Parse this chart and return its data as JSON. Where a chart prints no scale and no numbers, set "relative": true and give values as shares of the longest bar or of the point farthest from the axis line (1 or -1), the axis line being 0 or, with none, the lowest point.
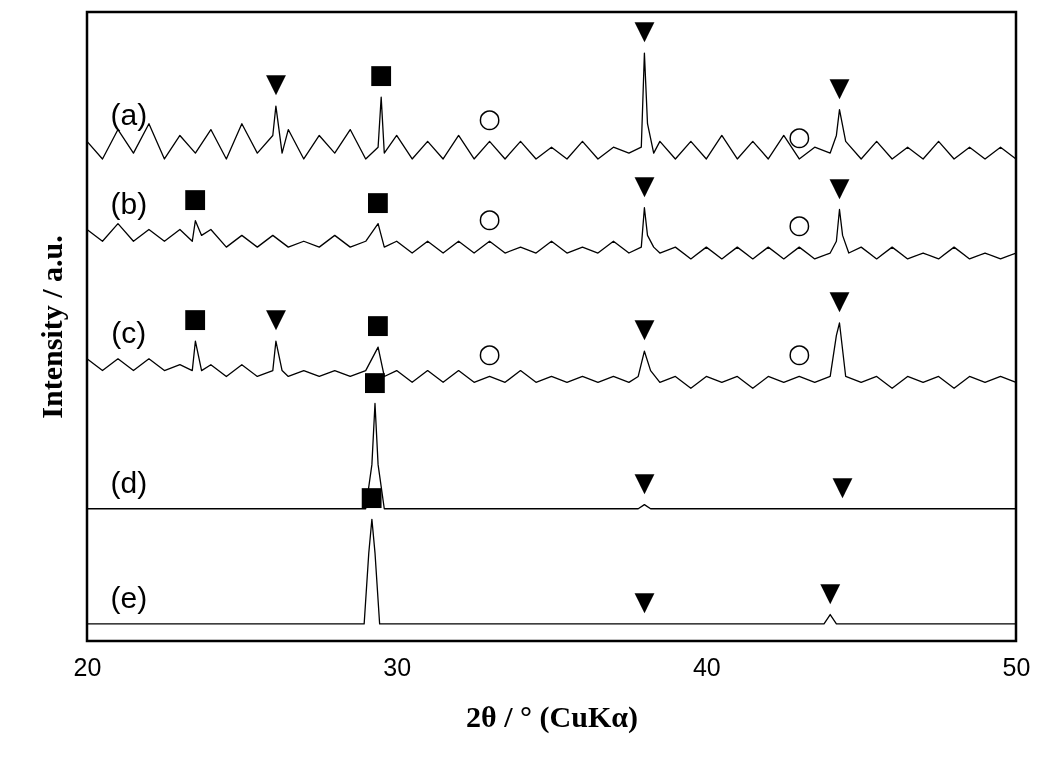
{
  "chart_data": {
    "type": "line",
    "relative": true,
    "xlabel": "2θ / °  (CuKα)",
    "ylabel": "Intensity / a.u.",
    "xlim": [
      20,
      50
    ],
    "xticks": [
      20,
      30,
      40,
      50
    ],
    "marker": "none",
    "series": [
      {
        "name": "(a)",
        "color": "#000000",
        "x": [
          20,
          20.5,
          21,
          21.5,
          22,
          22.5,
          23,
          23.5,
          24,
          24.5,
          25,
          25.5,
          26,
          26.1,
          26.3,
          26.5,
          27,
          27.5,
          28,
          28.5,
          29,
          29.4,
          29.5,
          29.6,
          30,
          30.5,
          31,
          31.5,
          32,
          32.5,
          33,
          33.5,
          34,
          34.5,
          35,
          35.5,
          36,
          36.5,
          37,
          37.5,
          37.9,
          38,
          38.1,
          38.3,
          38.5,
          39,
          39.5,
          40,
          40.5,
          41,
          41.5,
          42,
          42.5,
          43,
          43.5,
          44,
          44.2,
          44.3,
          44.5,
          45,
          45.5,
          46,
          46.5,
          47,
          47.5,
          48,
          48.5,
          49,
          49.5,
          50
        ],
        "values": [
          0.85,
          0.82,
          0.87,
          0.83,
          0.88,
          0.82,
          0.86,
          0.83,
          0.87,
          0.82,
          0.88,
          0.83,
          0.86,
          0.91,
          0.83,
          0.87,
          0.82,
          0.86,
          0.83,
          0.87,
          0.82,
          0.84,
          0.925,
          0.83,
          0.86,
          0.82,
          0.85,
          0.82,
          0.86,
          0.82,
          0.85,
          0.82,
          0.85,
          0.82,
          0.84,
          0.82,
          0.85,
          0.82,
          0.84,
          0.83,
          0.84,
          1.0,
          0.88,
          0.83,
          0.85,
          0.82,
          0.85,
          0.82,
          0.86,
          0.82,
          0.85,
          0.82,
          0.86,
          0.82,
          0.84,
          0.83,
          0.86,
          0.904,
          0.85,
          0.82,
          0.85,
          0.82,
          0.84,
          0.82,
          0.85,
          0.82,
          0.84,
          0.82,
          0.84,
          0.82
        ]
      },
      {
        "name": "(b)",
        "color": "#000000",
        "x": [
          20,
          20.5,
          21,
          21.5,
          22,
          22.5,
          23,
          23.4,
          23.5,
          23.7,
          24,
          24.5,
          25,
          25.5,
          26,
          26.5,
          27,
          27.5,
          28,
          28.5,
          29,
          29.4,
          29.6,
          30,
          30.5,
          31,
          31.5,
          32,
          32.5,
          33,
          33.5,
          34,
          34.5,
          35,
          35.5,
          36,
          36.5,
          37,
          37.5,
          37.9,
          38,
          38.1,
          38.3,
          38.5,
          39,
          39.5,
          40,
          40.5,
          41,
          41.5,
          42,
          42.5,
          43,
          43.5,
          44,
          44.2,
          44.3,
          44.4,
          44.6,
          45,
          45.5,
          46,
          46.5,
          47,
          47.5,
          48,
          48.5,
          49,
          49.5,
          50
        ],
        "values": [
          0.7,
          0.68,
          0.71,
          0.68,
          0.7,
          0.68,
          0.7,
          0.68,
          0.715,
          0.69,
          0.7,
          0.67,
          0.69,
          0.67,
          0.69,
          0.67,
          0.68,
          0.67,
          0.69,
          0.67,
          0.68,
          0.71,
          0.67,
          0.68,
          0.66,
          0.68,
          0.66,
          0.68,
          0.66,
          0.68,
          0.66,
          0.67,
          0.66,
          0.68,
          0.66,
          0.67,
          0.66,
          0.68,
          0.66,
          0.67,
          0.737,
          0.69,
          0.67,
          0.66,
          0.67,
          0.65,
          0.67,
          0.65,
          0.67,
          0.65,
          0.67,
          0.65,
          0.67,
          0.65,
          0.66,
          0.68,
          0.734,
          0.69,
          0.66,
          0.67,
          0.65,
          0.67,
          0.65,
          0.66,
          0.65,
          0.67,
          0.65,
          0.66,
          0.65,
          0.66
        ]
      },
      {
        "name": "(c)",
        "color": "#000000",
        "x": [
          20,
          20.5,
          21,
          21.5,
          22,
          22.5,
          23,
          23.4,
          23.5,
          23.7,
          24,
          24.5,
          25,
          25.5,
          26,
          26.1,
          26.3,
          26.5,
          27,
          27.5,
          28,
          28.5,
          29,
          29.4,
          29.6,
          30,
          30.5,
          31,
          31.5,
          32,
          32.5,
          33,
          33.5,
          34,
          34.5,
          35,
          35.5,
          36,
          36.5,
          37,
          37.5,
          37.8,
          38,
          38.2,
          38.5,
          39,
          39.5,
          40,
          40.5,
          41,
          41.5,
          42,
          42.5,
          43,
          43.5,
          44,
          44.2,
          44.3,
          44.5,
          45,
          45.5,
          46,
          46.5,
          47,
          47.5,
          48,
          48.5,
          49,
          49.5,
          50
        ],
        "values": [
          0.48,
          0.46,
          0.48,
          0.46,
          0.48,
          0.46,
          0.47,
          0.46,
          0.51,
          0.46,
          0.47,
          0.45,
          0.47,
          0.45,
          0.46,
          0.51,
          0.46,
          0.45,
          0.46,
          0.45,
          0.46,
          0.45,
          0.46,
          0.5,
          0.45,
          0.46,
          0.44,
          0.46,
          0.44,
          0.46,
          0.44,
          0.45,
          0.44,
          0.46,
          0.44,
          0.45,
          0.44,
          0.45,
          0.44,
          0.45,
          0.44,
          0.45,
          0.493,
          0.46,
          0.44,
          0.45,
          0.43,
          0.45,
          0.44,
          0.45,
          0.43,
          0.45,
          0.44,
          0.45,
          0.44,
          0.45,
          0.52,
          0.541,
          0.45,
          0.44,
          0.45,
          0.43,
          0.45,
          0.44,
          0.45,
          0.43,
          0.45,
          0.44,
          0.45,
          0.44
        ]
      },
      {
        "name": "(d)",
        "color": "#000000",
        "x": [
          20,
          29.0,
          29.2,
          29.3,
          29.4,
          29.6,
          37.8,
          38.0,
          38.2,
          44.4,
          50
        ],
        "values": [
          0.225,
          0.225,
          0.3,
          0.404,
          0.3,
          0.225,
          0.225,
          0.232,
          0.225,
          0.225,
          0.225
        ]
      },
      {
        "name": "(e)",
        "color": "#000000",
        "x": [
          20,
          28.95,
          29.1,
          29.2,
          29.3,
          29.45,
          38.0,
          43.8,
          44.0,
          44.2,
          50
        ],
        "values": [
          0.029,
          0.029,
          0.15,
          0.207,
          0.15,
          0.029,
          0.029,
          0.029,
          0.045,
          0.029,
          0.029
        ]
      }
    ],
    "annotations": [
      {
        "text": "▼",
        "x": 26.1,
        "y": 0.91
      },
      {
        "text": "■",
        "x": 29.5,
        "y": 0.925
      },
      {
        "text": "○",
        "x": 33,
        "y": 0.85
      },
      {
        "text": "▼",
        "x": 38,
        "y": 1.0
      },
      {
        "text": "○",
        "x": 43,
        "y": 0.82
      },
      {
        "text": "▼",
        "x": 44.3,
        "y": 0.904
      },
      {
        "text": "■",
        "x": 23.5,
        "y": 0.715
      },
      {
        "text": "■",
        "x": 29.4,
        "y": 0.71
      },
      {
        "text": "○",
        "x": 33,
        "y": 0.68
      },
      {
        "text": "▼",
        "x": 38,
        "y": 0.737
      },
      {
        "text": "○",
        "x": 43,
        "y": 0.67
      },
      {
        "text": "▼",
        "x": 44.3,
        "y": 0.734
      },
      {
        "text": "■",
        "x": 23.5,
        "y": 0.51
      },
      {
        "text": "▼",
        "x": 26.1,
        "y": 0.51
      },
      {
        "text": "■",
        "x": 29.4,
        "y": 0.5
      },
      {
        "text": "○",
        "x": 33,
        "y": 0.45
      },
      {
        "text": "▼",
        "x": 38,
        "y": 0.493
      },
      {
        "text": "○",
        "x": 43,
        "y": 0.45
      },
      {
        "text": "▼",
        "x": 44.3,
        "y": 0.541
      },
      {
        "text": "■",
        "x": 29.3,
        "y": 0.404
      },
      {
        "text": "▼",
        "x": 38,
        "y": 0.232
      },
      {
        "text": "▼",
        "x": 44.4,
        "y": 0.225
      },
      {
        "text": "■",
        "x": 29.2,
        "y": 0.207
      },
      {
        "text": "▼",
        "x": 38,
        "y": 0.029
      },
      {
        "text": "▼",
        "x": 44,
        "y": 0.045
      }
    ]
  }
}
